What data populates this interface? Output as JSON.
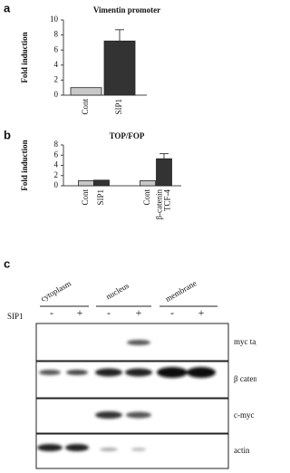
{
  "chart_data": [
    {
      "type": "bar",
      "panel": "a",
      "title": "Vimentin promoter",
      "ylabel": "Fold induction",
      "categories": [
        "Cont",
        "SIP1"
      ],
      "values": [
        1.0,
        7.2
      ],
      "errors": [
        null,
        1.5
      ],
      "colors": [
        "#c8c8c8",
        "#333333"
      ],
      "ylim": [
        0,
        10
      ],
      "yticks": [
        0,
        2,
        4,
        6,
        8,
        10
      ]
    },
    {
      "type": "bar",
      "panel": "b",
      "title": "TOP/FOP",
      "ylabel": "Fold induction",
      "categories": [
        "Cont",
        "SIP1",
        "Cont",
        "β-catenin TCF-4"
      ],
      "values": [
        1.0,
        1.1,
        1.0,
        5.3
      ],
      "errors": [
        null,
        null,
        null,
        1.0
      ],
      "colors": [
        "#c8c8c8",
        "#333333",
        "#c8c8c8",
        "#333333"
      ],
      "ylim": [
        0,
        8
      ],
      "yticks": [
        0,
        2,
        4,
        6,
        8
      ]
    }
  ],
  "blot": {
    "panel": "c",
    "fractions": [
      "cytoplasm",
      "nucleus",
      "membrane"
    ],
    "row_label": "SIP1",
    "lanes": [
      "-",
      "+",
      "-",
      "+",
      "-",
      "+"
    ],
    "bands": [
      "myc tag",
      "β catenin",
      "c-myc",
      "actin"
    ]
  }
}
